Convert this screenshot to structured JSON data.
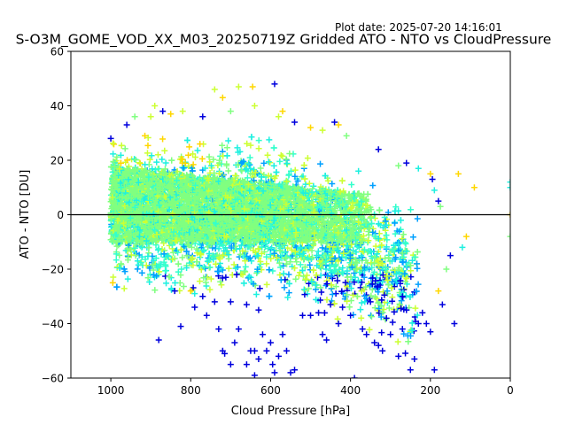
{
  "figure": {
    "plot_date": "Plot date: 2025-07-20 14:16:01",
    "title": "S-O3M_GOME_VOD_XX_M03_20250719Z Gridded ATO - NTO vs CloudPressure"
  },
  "chart_data": {
    "type": "scatter",
    "title": "S-O3M_GOME_VOD_XX_M03_20250719Z Gridded ATO - NTO vs CloudPressure",
    "xlabel": "Cloud Pressure [hPa]",
    "ylabel": "ATO - NTO [DU]",
    "xlim": [
      1100,
      0
    ],
    "ylim": [
      -60,
      60
    ],
    "x_inverted": true,
    "xticks": [
      1000,
      800,
      600,
      400,
      200,
      0
    ],
    "yticks": [
      -60,
      -40,
      -20,
      0,
      20,
      40,
      60
    ],
    "xtick_labels": [
      "1000",
      "800",
      "600",
      "400",
      "200",
      "0"
    ],
    "ytick_labels": [
      "−60",
      "−40",
      "−20",
      "0",
      "20",
      "40",
      "60"
    ],
    "marker": "+",
    "reference_line": {
      "y": 0,
      "color": "#000000"
    },
    "grid": false,
    "legend": "none",
    "colors": [
      "#0000dd",
      "#00a0ff",
      "#1ef0e0",
      "#33ffcc",
      "#80ff80",
      "#ccff33",
      "#ffd700"
    ],
    "point_cloud": {
      "x_range": [
        230,
        1000
      ],
      "core_band": {
        "at_x_1000": [
          -10,
          18
        ],
        "at_x_400": [
          -10,
          8
        ]
      },
      "outer_band": {
        "at_x_1000": [
          -30,
          30
        ],
        "at_x_600": [
          -30,
          30
        ],
        "at_x_400": [
          -40,
          15
        ],
        "at_x_250": [
          -55,
          5
        ]
      }
    },
    "points": [
      [
        1000,
        28
      ],
      [
        995,
        -25
      ],
      [
        960,
        33
      ],
      [
        940,
        36
      ],
      [
        900,
        36
      ],
      [
        890,
        40
      ],
      [
        870,
        38
      ],
      [
        850,
        37
      ],
      [
        820,
        38
      ],
      [
        770,
        36
      ],
      [
        740,
        46
      ],
      [
        720,
        43
      ],
      [
        700,
        38
      ],
      [
        680,
        47
      ],
      [
        645,
        47
      ],
      [
        640,
        40
      ],
      [
        590,
        48
      ],
      [
        580,
        36
      ],
      [
        570,
        38
      ],
      [
        540,
        34
      ],
      [
        500,
        32
      ],
      [
        470,
        31
      ],
      [
        440,
        34
      ],
      [
        430,
        33
      ],
      [
        410,
        29
      ],
      [
        380,
        16
      ],
      [
        330,
        24
      ],
      [
        280,
        18
      ],
      [
        260,
        19
      ],
      [
        230,
        17
      ],
      [
        200,
        15
      ],
      [
        195,
        13
      ],
      [
        190,
        9
      ],
      [
        180,
        5
      ],
      [
        175,
        3
      ],
      [
        130,
        15
      ],
      [
        90,
        10
      ],
      [
        0,
        12
      ],
      [
        0,
        10
      ],
      [
        0,
        0
      ],
      [
        0,
        -8
      ],
      [
        825,
        -41
      ],
      [
        880,
        -46
      ],
      [
        790,
        -34
      ],
      [
        760,
        -37
      ],
      [
        730,
        -42
      ],
      [
        720,
        -50
      ],
      [
        715,
        -51
      ],
      [
        700,
        -55
      ],
      [
        690,
        -47
      ],
      [
        680,
        -42
      ],
      [
        660,
        -55
      ],
      [
        650,
        -50
      ],
      [
        640,
        -50
      ],
      [
        640,
        -59
      ],
      [
        630,
        -53
      ],
      [
        620,
        -44
      ],
      [
        610,
        -50
      ],
      [
        600,
        -47
      ],
      [
        595,
        -55
      ],
      [
        590,
        -58
      ],
      [
        580,
        -52
      ],
      [
        570,
        -44
      ],
      [
        560,
        -50
      ],
      [
        550,
        -58
      ],
      [
        540,
        -57
      ],
      [
        520,
        -37
      ],
      [
        500,
        -37
      ],
      [
        470,
        -44
      ],
      [
        460,
        -46
      ],
      [
        430,
        -40
      ],
      [
        420,
        -34
      ],
      [
        400,
        -37
      ],
      [
        390,
        -60
      ],
      [
        370,
        -42
      ],
      [
        360,
        -44
      ],
      [
        340,
        -47
      ],
      [
        330,
        -48
      ],
      [
        320,
        -50
      ],
      [
        300,
        -44
      ],
      [
        280,
        -52
      ],
      [
        270,
        -42
      ],
      [
        250,
        -57
      ],
      [
        240,
        -53
      ],
      [
        230,
        -40
      ],
      [
        220,
        -36
      ],
      [
        210,
        -40
      ],
      [
        200,
        -43
      ],
      [
        190,
        -57
      ],
      [
        180,
        -28
      ],
      [
        170,
        -33
      ],
      [
        160,
        -20
      ],
      [
        150,
        -15
      ],
      [
        140,
        -40
      ],
      [
        120,
        -12
      ],
      [
        110,
        -8
      ],
      [
        260,
        -35
      ],
      [
        270,
        -30
      ],
      [
        310,
        -38
      ],
      [
        350,
        -32
      ],
      [
        450,
        -33
      ],
      [
        480,
        -36
      ],
      [
        630,
        -35
      ],
      [
        660,
        -33
      ],
      [
        700,
        -32
      ],
      [
        740,
        -32
      ],
      [
        770,
        -30
      ],
      [
        800,
        -28
      ],
      [
        840,
        -28
      ]
    ]
  }
}
